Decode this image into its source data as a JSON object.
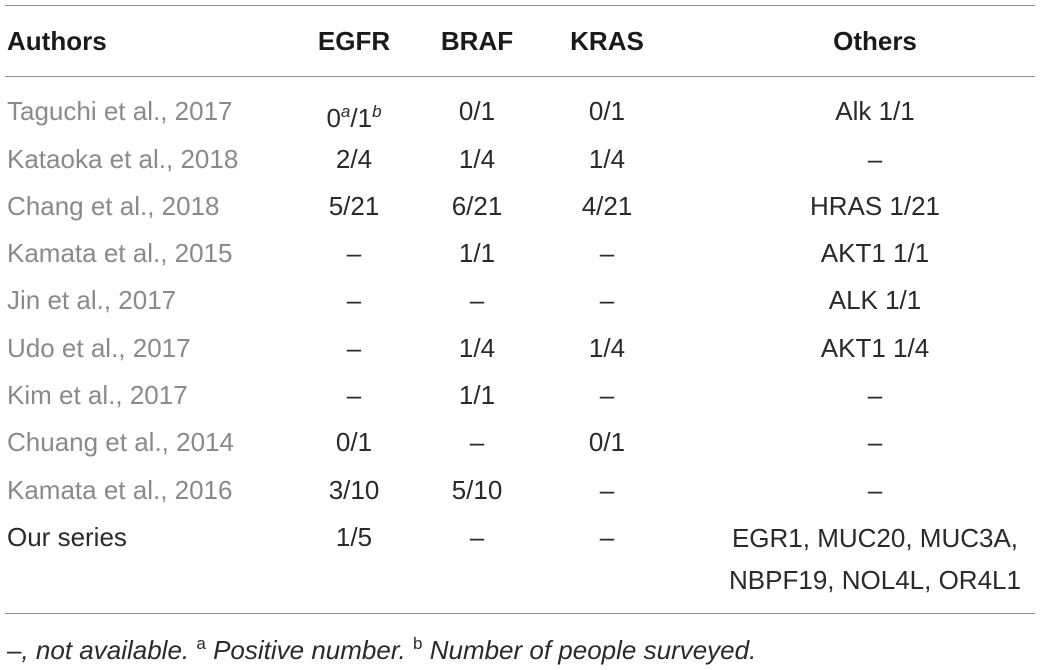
{
  "table": {
    "headers": {
      "authors": "Authors",
      "egfr": "EGFR",
      "braf": "BRAF",
      "kras": "KRAS",
      "others": "Others"
    },
    "first_row_egfr": {
      "positive": "0",
      "positive_mark": "a",
      "separator": "/",
      "surveyed": "1",
      "surveyed_mark": "b"
    },
    "rows": [
      {
        "author": "Taguchi et al., 2017",
        "egfr": "0a/1b",
        "braf": "0/1",
        "kras": "0/1",
        "others": "Alk 1/1"
      },
      {
        "author": "Kataoka et al., 2018",
        "egfr": "2/4",
        "braf": "1/4",
        "kras": "1/4",
        "others": "–"
      },
      {
        "author": "Chang et al., 2018",
        "egfr": "5/21",
        "braf": "6/21",
        "kras": "4/21",
        "others": "HRAS 1/21"
      },
      {
        "author": "Kamata et al., 2015",
        "egfr": "–",
        "braf": "1/1",
        "kras": "–",
        "others": "AKT1 1/1"
      },
      {
        "author": "Jin et al., 2017",
        "egfr": "–",
        "braf": "–",
        "kras": "–",
        "others": "ALK 1/1"
      },
      {
        "author": "Udo et al., 2017",
        "egfr": "–",
        "braf": "1/4",
        "kras": "1/4",
        "others": "AKT1 1/4"
      },
      {
        "author": "Kim et al., 2017",
        "egfr": "–",
        "braf": "1/1",
        "kras": "–",
        "others": "–"
      },
      {
        "author": "Chuang et al., 2014",
        "egfr": "0/1",
        "braf": "–",
        "kras": "0/1",
        "others": "–"
      },
      {
        "author": "Kamata et al., 2016",
        "egfr": "3/10",
        "braf": "5/10",
        "kras": "–",
        "others": "–"
      },
      {
        "author": "Our series",
        "egfr": "1/5",
        "braf": "–",
        "kras": "–",
        "others_line1": "EGR1, MUC20, MUC3A,",
        "others_line2": "NBPF19, NOL4L, OR4L1"
      }
    ]
  },
  "footnote": {
    "dash_text": "–, not available.",
    "mark_a": "a",
    "a_text": "Positive number.",
    "mark_b": "b",
    "b_text": "Number of people surveyed."
  }
}
